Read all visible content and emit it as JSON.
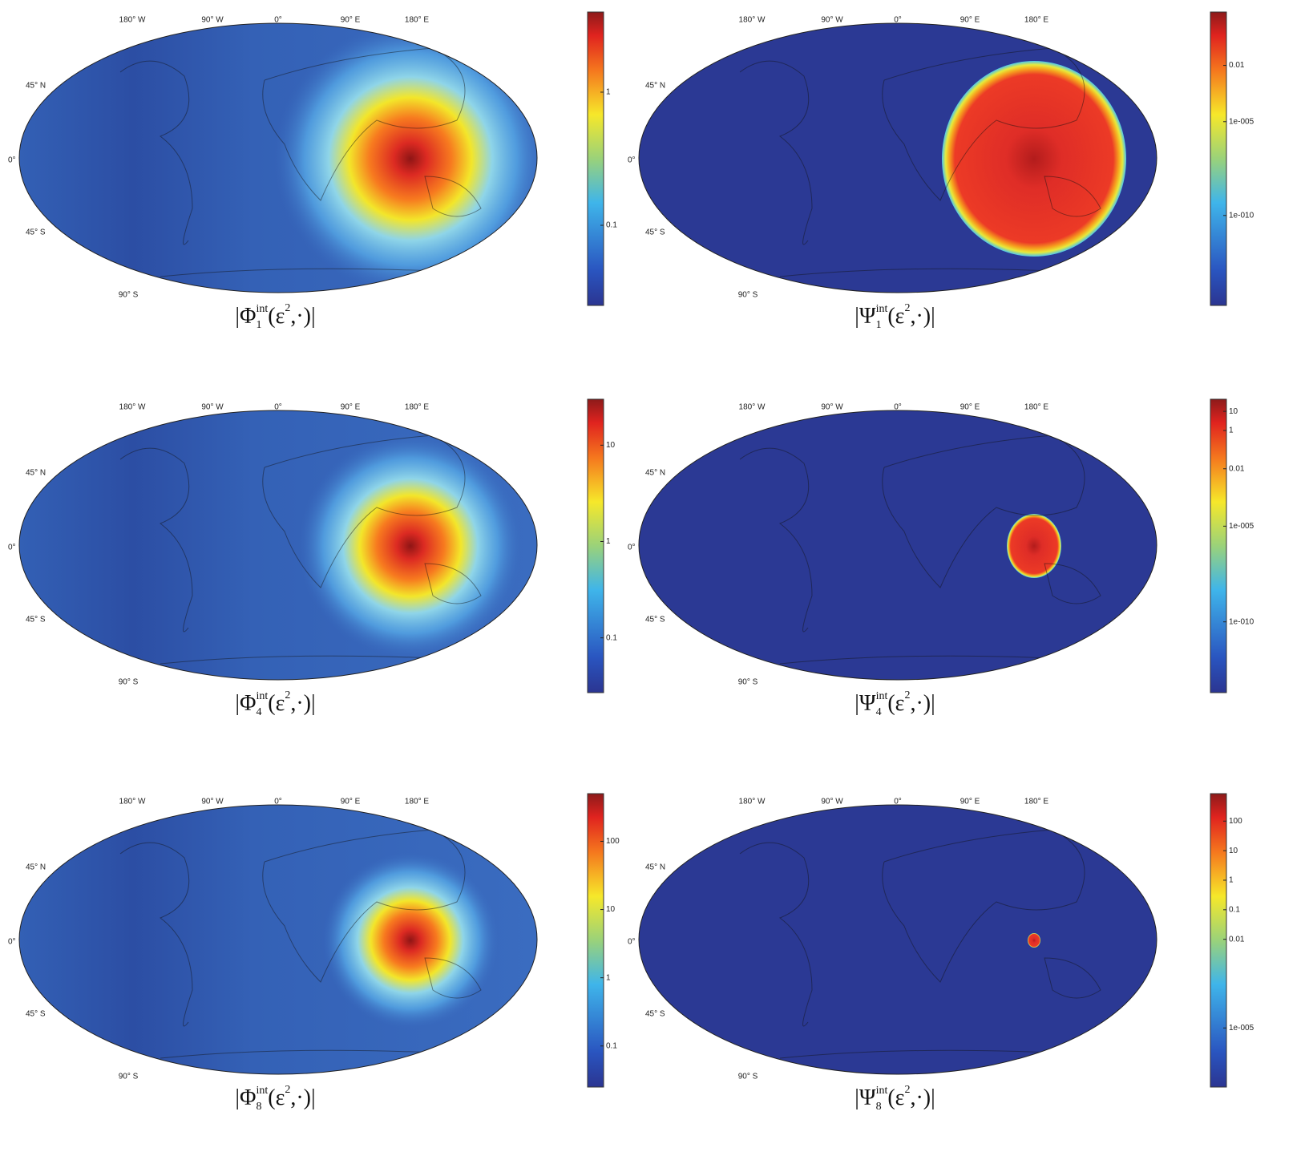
{
  "graticule": {
    "lon": [
      "180° W",
      "90° W",
      "0°",
      "90° E",
      "180° E"
    ],
    "lat": [
      "45° N",
      "0°",
      "45° S",
      "90° S"
    ]
  },
  "panels": [
    {
      "caption": {
        "open": "|Φ",
        "sub": "1",
        "sup": "int",
        "args": "(ε",
        "args_sup": "2",
        "close": ",·)|"
      },
      "colorbar": {
        "scale": "log",
        "clim": [
          0.025,
          4
        ],
        "ticks": [
          1,
          0.1
        ]
      }
    },
    {
      "caption": {
        "open": "|Ψ",
        "sub": "1",
        "sup": "int",
        "args": "(ε",
        "args_sup": "2",
        "close": ",·)|"
      },
      "colorbar": {
        "scale": "log",
        "clim": [
          1.6e-15,
          7
        ],
        "ticks": [
          0.01,
          {
            "value": 1e-05,
            "label": "1e-005"
          },
          {
            "value": 1e-10,
            "label": "1e-010"
          }
        ]
      }
    },
    {
      "caption": {
        "open": "|Φ",
        "sub": "4",
        "sup": "int",
        "args": "(ε",
        "args_sup": "2",
        "close": ",·)|"
      },
      "colorbar": {
        "scale": "log",
        "clim": [
          0.027,
          30
        ],
        "ticks": [
          10,
          1,
          0.1
        ]
      }
    },
    {
      "caption": {
        "open": "|Ψ",
        "sub": "4",
        "sup": "int",
        "args": "(ε",
        "args_sup": "2",
        "close": ",·)|"
      },
      "colorbar": {
        "scale": "log",
        "clim": [
          2e-14,
          43
        ],
        "ticks": [
          10,
          1,
          0.01,
          {
            "value": 1e-05,
            "label": "1e-005"
          },
          {
            "value": 1e-10,
            "label": "1e-010"
          }
        ]
      }
    },
    {
      "caption": {
        "open": "|Φ",
        "sub": "8",
        "sup": "int",
        "args": "(ε",
        "args_sup": "2",
        "close": ",·)|"
      },
      "colorbar": {
        "scale": "log",
        "clim": [
          0.025,
          500
        ],
        "ticks": [
          100,
          10,
          1,
          0.1
        ]
      }
    },
    {
      "caption": {
        "open": "|Ψ",
        "sub": "8",
        "sup": "int",
        "args": "(ε",
        "args_sup": "2",
        "close": ",·)|"
      },
      "colorbar": {
        "scale": "log",
        "clim": [
          1e-07,
          850
        ],
        "ticks": [
          100,
          10,
          1,
          0.1,
          0.01,
          {
            "value": 1e-05,
            "label": "1e-005"
          }
        ]
      }
    }
  ]
}
